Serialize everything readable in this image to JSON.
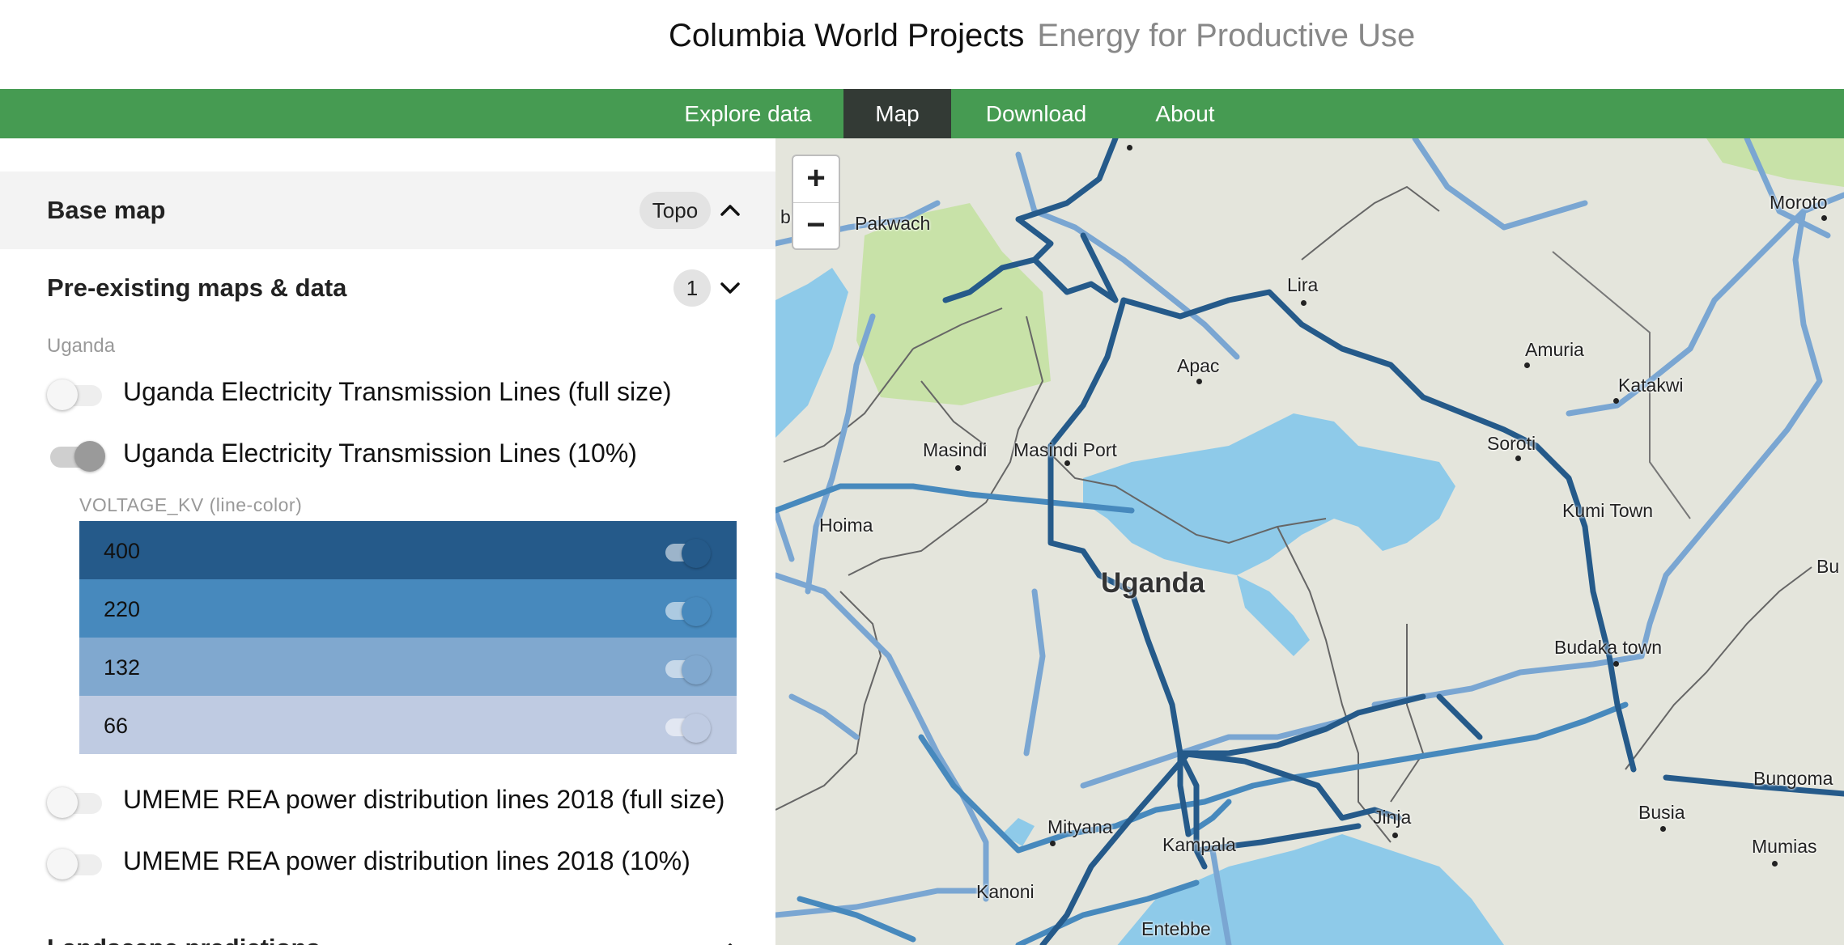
{
  "header": {
    "title": "Columbia World Projects",
    "subtitle": "Energy for Productive Use"
  },
  "nav": {
    "items": [
      {
        "label": "Explore data",
        "active": false
      },
      {
        "label": "Map",
        "active": true
      },
      {
        "label": "Download",
        "active": false
      },
      {
        "label": "About",
        "active": false
      }
    ]
  },
  "sidebar": {
    "base_map": {
      "title": "Base map",
      "selected": "Topo",
      "expanded": true
    },
    "pre_existing": {
      "title": "Pre-existing maps & data",
      "count": "1",
      "expanded": true,
      "group_label": "Uganda",
      "layers": [
        {
          "label": "Uganda Electricity Transmission Lines (full size)",
          "enabled": false
        },
        {
          "label": "Uganda Electricity Transmission Lines (10%)",
          "enabled": true
        },
        {
          "label": "UMEME REA power distribution lines 2018 (full size)",
          "enabled": false
        },
        {
          "label": "UMEME REA power distribution lines 2018 (10%)",
          "enabled": false
        }
      ],
      "legend": {
        "title": "VOLTAGE_KV (line-color)",
        "rows": [
          {
            "value": "400",
            "color": "#255a8a",
            "enabled": true
          },
          {
            "value": "220",
            "color": "#4789bd",
            "enabled": true
          },
          {
            "value": "132",
            "color": "#80a8cf",
            "enabled": true
          },
          {
            "value": "66",
            "color": "#bfcbe2",
            "enabled": true
          }
        ]
      }
    },
    "landscape": {
      "title": "Landscape predictions"
    }
  },
  "map": {
    "zoom_in": "+",
    "zoom_out": "−",
    "places": [
      "Pakwach",
      "Lira",
      "Apac",
      "Amuria",
      "Katakwi",
      "Moroto",
      "Masindi",
      "Masindi Port",
      "Soroti",
      "Hoima",
      "Kumi Town",
      "Uganda",
      "Budaka town",
      "Bungoma",
      "Busia",
      "Mityana",
      "Kampala",
      "Kanoni",
      "Mumias",
      "Entebbe",
      "Jinja",
      "Bu",
      "b"
    ],
    "colors": {
      "water": "#8ecae9",
      "land": "#e4e5dc",
      "park": "#c8e2a8"
    }
  }
}
